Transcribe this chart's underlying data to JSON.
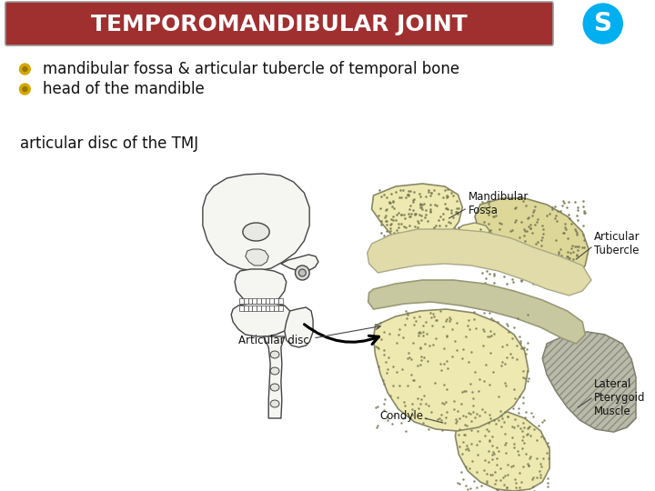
{
  "title": "TEMPOROMANDIBULAR JOINT",
  "title_bg_color": "#a03030",
  "title_text_color": "#ffffff",
  "title_fontsize": 18,
  "bullet_color": "#d4a800",
  "bullet_items": [
    "mandibular fossa & articular tubercle of temporal bone",
    "head of the mandible"
  ],
  "bullet_fontsize": 12,
  "sub_text": "articular disc of the TMJ",
  "sub_text_fontsize": 12,
  "background_color": "#ffffff",
  "skype_icon_color": "#00aff0",
  "skype_letter_color": "#ffffff",
  "bone_fill": "#ede9b0",
  "bone_edge": "#888866",
  "disc_fill": "#c8c8a0",
  "muscle_fill": "#b8b8a8",
  "skull_edge": "#444444",
  "skull_fill": "#f5f5f2"
}
